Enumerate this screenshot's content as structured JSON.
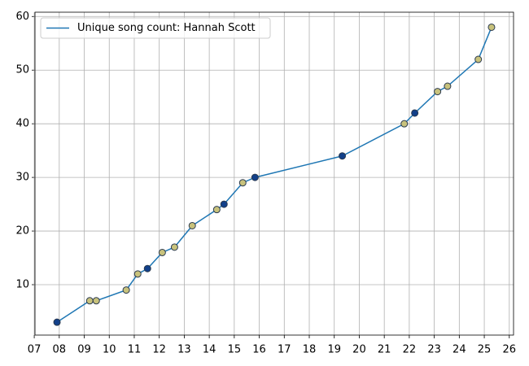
{
  "chart_data": {
    "type": "line",
    "x": [
      7.91,
      9.22,
      9.48,
      10.68,
      11.14,
      11.53,
      12.12,
      12.61,
      13.32,
      14.3,
      14.59,
      15.34,
      15.83,
      19.32,
      21.8,
      22.22,
      23.13,
      23.53,
      24.76,
      25.29
    ],
    "series": [
      {
        "name": "Unique song count: Hannah Scott",
        "color": "#1f77b4",
        "values": [
          3,
          7,
          7,
          9,
          12,
          13,
          16,
          17,
          21,
          24,
          25,
          29,
          30,
          34,
          40,
          42,
          46,
          47,
          52,
          58
        ],
        "marker_colors": [
          "#12408a",
          "#c8c27c",
          "#c8c27c",
          "#c8c27c",
          "#c8c27c",
          "#12408a",
          "#c8c27c",
          "#c8c27c",
          "#c8c27c",
          "#c8c27c",
          "#12408a",
          "#c8c27c",
          "#12408a",
          "#12408a",
          "#c8c27c",
          "#12408a",
          "#c8c27c",
          "#c8c27c",
          "#c8c27c",
          "#c8c27c"
        ],
        "marker_edge_color": "#2b3a4f"
      }
    ],
    "xlim": [
      7.03,
      26.17
    ],
    "xticks": [
      {
        "value": 7,
        "label": "07"
      },
      {
        "value": 8,
        "label": "08"
      },
      {
        "value": 9,
        "label": "09"
      },
      10,
      11,
      12,
      13,
      14,
      15,
      16,
      17,
      18,
      19,
      20,
      21,
      22,
      23,
      24,
      25,
      26
    ],
    "ylim": [
      0.6,
      60.8
    ],
    "yticks": [
      10,
      20,
      30,
      40,
      50,
      60
    ],
    "grid": true,
    "legend": "upper left"
  }
}
